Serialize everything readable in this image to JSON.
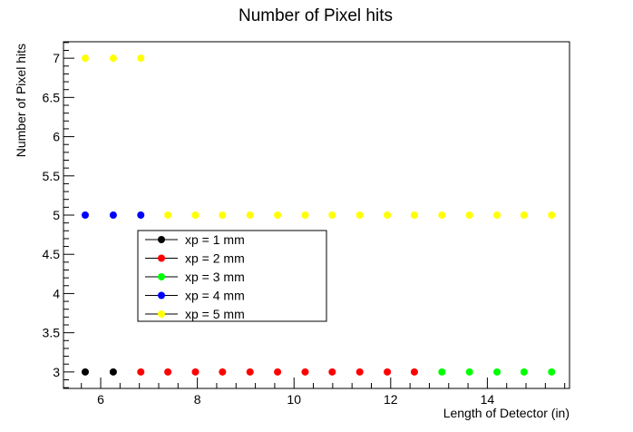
{
  "chart_data": {
    "type": "scatter",
    "title": "Number of Pixel hits",
    "xlabel": "Length of Detector (in)",
    "ylabel": "Number of Pixel hits",
    "xlim": [
      5.23,
      15.7
    ],
    "ylim": [
      2.79,
      7.21
    ],
    "xticks": [
      6,
      8,
      10,
      12,
      14
    ],
    "xtick_labels": [
      "6",
      "8",
      "10",
      "12",
      "14"
    ],
    "yticks": [
      3,
      3.5,
      4,
      4.5,
      5,
      5.5,
      6,
      6.5,
      7
    ],
    "ytick_labels": [
      "3",
      "3.5",
      "4",
      "4.5",
      "5",
      "5.5",
      "6",
      "6.5",
      "7"
    ],
    "grid": false,
    "legend_position": "center-left",
    "series": [
      {
        "name": "xp = 1 mm",
        "color": "#000000",
        "points": [
          [
            5.68,
            3
          ],
          [
            6.26,
            3
          ]
        ]
      },
      {
        "name": "xp = 2 mm",
        "color": "#ff0000",
        "points": [
          [
            6.83,
            3
          ],
          [
            7.39,
            3
          ],
          [
            7.96,
            3
          ],
          [
            8.52,
            3
          ],
          [
            9.09,
            3
          ],
          [
            9.66,
            3
          ],
          [
            10.23,
            3
          ],
          [
            10.79,
            3
          ],
          [
            11.36,
            3
          ],
          [
            11.93,
            3
          ],
          [
            12.49,
            3
          ]
        ]
      },
      {
        "name": "xp = 3 mm",
        "color": "#00ff00",
        "points": [
          [
            13.06,
            3
          ],
          [
            13.63,
            3
          ],
          [
            14.2,
            3
          ],
          [
            14.76,
            3
          ],
          [
            15.33,
            3
          ]
        ]
      },
      {
        "name": "xp = 4 mm",
        "color": "#0000ff",
        "points": [
          [
            5.68,
            5
          ],
          [
            6.26,
            5
          ],
          [
            6.83,
            5
          ]
        ]
      },
      {
        "name": "xp = 5 mm",
        "color": "#ffff00",
        "points": [
          [
            5.68,
            7
          ],
          [
            6.26,
            7
          ],
          [
            6.83,
            7
          ],
          [
            7.39,
            5
          ],
          [
            7.96,
            5
          ],
          [
            8.52,
            5
          ],
          [
            9.09,
            5
          ],
          [
            9.66,
            5
          ],
          [
            10.23,
            5
          ],
          [
            10.79,
            5
          ],
          [
            11.36,
            5
          ],
          [
            11.93,
            5
          ],
          [
            12.49,
            5
          ],
          [
            13.06,
            5
          ],
          [
            13.63,
            5
          ],
          [
            14.2,
            5
          ],
          [
            14.76,
            5
          ],
          [
            15.33,
            5
          ]
        ]
      }
    ]
  }
}
